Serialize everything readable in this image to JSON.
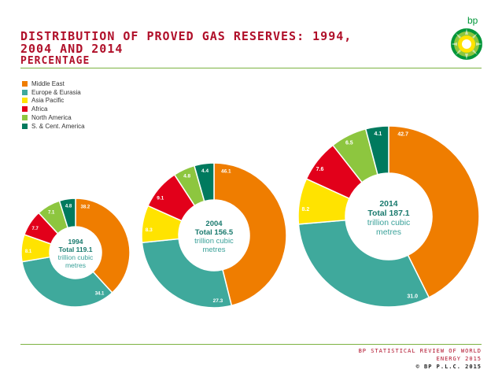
{
  "header": {
    "title_line1": "Distribution of proved gas reserves: 1994,",
    "title_line2": "2004 and 2014",
    "subtitle": "Percentage",
    "logo_text": "bp"
  },
  "footer": {
    "line1": "BP Statistical Review of World",
    "line2": "Energy 2015",
    "line3": "© BP p.l.c. 2015"
  },
  "colors": {
    "Middle East": "#ef7d00",
    "Europe & Eurasia": "#3fa99c",
    "Asia Pacific": "#ffe300",
    "Africa": "#e2001a",
    "North America": "#8dc63f",
    "S. & Cent. America": "#007a5e"
  },
  "chart_data": {
    "type": "pie",
    "title": "Distribution of proved gas reserves: 1994, 2004 and 2014",
    "subtitle": "Percentage",
    "categories": [
      "Middle East",
      "Europe & Eurasia",
      "Asia Pacific",
      "Africa",
      "North America",
      "S. & Cent. America"
    ],
    "legend_position": "top-left",
    "charts": [
      {
        "year": "1994",
        "total_label": "Total 119.1",
        "unit_line1": "trillion cubic",
        "unit_line2": "metres",
        "values": [
          38.2,
          34.1,
          8.1,
          7.7,
          7.1,
          4.8
        ]
      },
      {
        "year": "2004",
        "total_label": "Total 156.5",
        "unit_line1": "trillion cubic",
        "unit_line2": "metres",
        "values": [
          46.1,
          27.3,
          8.3,
          9.1,
          4.8,
          4.4
        ]
      },
      {
        "year": "2014",
        "total_label": "Total 187.1",
        "unit_line1": "trillion cubic",
        "unit_line2": "metres",
        "values": [
          42.7,
          31.0,
          8.2,
          7.6,
          6.5,
          4.1
        ]
      }
    ]
  }
}
